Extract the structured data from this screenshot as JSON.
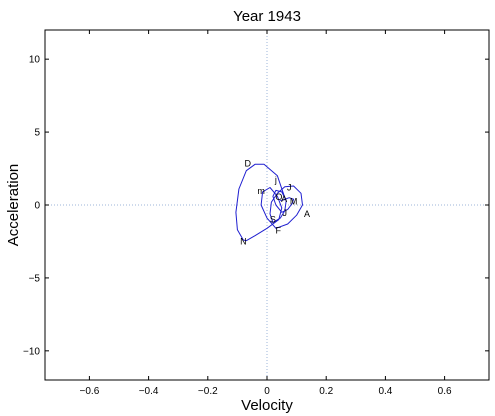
{
  "chart_data": {
    "type": "line",
    "title": "Year 1943",
    "xlabel": "Velocity",
    "ylabel": "Acceleration",
    "xlim": [
      -0.75,
      0.75
    ],
    "ylim": [
      -12,
      12
    ],
    "xticks": [
      -0.6,
      -0.4,
      -0.2,
      0,
      0.2,
      0.4,
      0.6
    ],
    "xtick_labels": [
      "−0.6",
      "−0.4",
      "−0.2",
      "0",
      "0.2",
      "0.4",
      "0.6"
    ],
    "yticks": [
      -10,
      -5,
      0,
      5,
      10
    ],
    "ytick_labels": [
      "−10",
      "−5",
      "0",
      "5",
      "10"
    ],
    "grid": "dotted zero lines",
    "line_color": "#1f1fd0",
    "series": [
      {
        "x": [
          0.06,
          0.035,
          -0.01,
          -0.04,
          -0.07,
          -0.095,
          -0.105,
          -0.1,
          -0.08,
          -0.07,
          -0.04,
          0,
          0.04,
          0.05,
          0.035,
          0.01,
          -0.015,
          -0.02,
          0.0,
          0.03,
          0.07,
          0.1,
          0.12,
          0.115,
          0.09,
          0.06,
          0.035,
          0.015,
          0.01,
          0.02,
          0.045,
          0.06,
          0.065,
          0.05,
          0.03,
          0.02,
          0.03,
          0.05,
          0.07,
          0.085,
          0.09,
          0.075,
          0.055,
          0.045
        ],
        "y": [
          0.5,
          2.0,
          2.8,
          2.8,
          2.35,
          1.1,
          -0.5,
          -1.7,
          -2.4,
          -2.45,
          -2.1,
          -1.6,
          -1.0,
          -0.2,
          0.6,
          1.2,
          0.9,
          0.0,
          -0.9,
          -1.6,
          -1.3,
          -0.7,
          0.0,
          0.8,
          1.3,
          1.25,
          0.8,
          0.2,
          -0.6,
          -1.2,
          -0.9,
          -0.4,
          0.3,
          0.9,
          1.0,
          0.6,
          0.0,
          -0.5,
          -0.3,
          0.1,
          0.4,
          0.5,
          0.35,
          0.3
        ]
      }
    ],
    "annotations": [
      {
        "text": "D",
        "x": -0.065,
        "y": 2.85
      },
      {
        "text": "N",
        "x": -0.08,
        "y": -2.5
      },
      {
        "text": "m",
        "x": -0.02,
        "y": 0.95
      },
      {
        "text": "j",
        "x": 0.03,
        "y": 1.7
      },
      {
        "text": "J",
        "x": 0.075,
        "y": 1.2
      },
      {
        "text": "O",
        "x": 0.04,
        "y": 0.55
      },
      {
        "text": "A",
        "x": 0.058,
        "y": 0.4
      },
      {
        "text": "M",
        "x": 0.09,
        "y": 0.25
      },
      {
        "text": "J",
        "x": 0.06,
        "y": -0.55
      },
      {
        "text": "S",
        "x": 0.02,
        "y": -1.0
      },
      {
        "text": "F",
        "x": 0.038,
        "y": -1.75
      },
      {
        "text": "A",
        "x": 0.135,
        "y": -0.6
      }
    ]
  }
}
